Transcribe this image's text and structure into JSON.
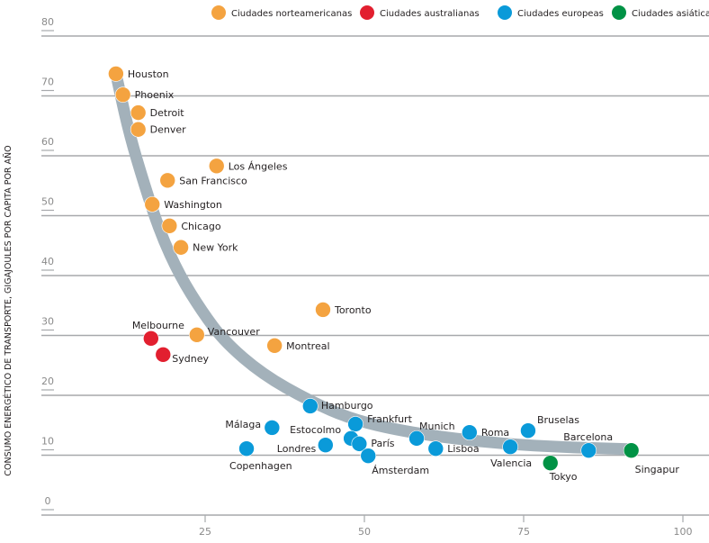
{
  "chart_data": {
    "type": "scatter",
    "title": "",
    "xlabel": "",
    "ylabel": "CONSUMO ENERGÉTICO DE TRANSPORTE, GIGAJOULES POR CAPITA POR AÑO",
    "xlim": [
      0,
      100
    ],
    "ylim": [
      0,
      80
    ],
    "xticks": [
      "25",
      "50",
      "75",
      "100"
    ],
    "yticks": [
      "0",
      "10",
      "20",
      "30",
      "40",
      "50",
      "60",
      "70",
      "80"
    ],
    "grid": "horizontal",
    "legend_position": "top",
    "series": [
      {
        "name": "Ciudades norteamericanas",
        "color": "#f4a340",
        "points": [
          {
            "label": "Houston",
            "x": 11.0,
            "y": 73.7
          },
          {
            "label": "Phoenix",
            "x": 12.1,
            "y": 70.2
          },
          {
            "label": "Detroit",
            "x": 14.5,
            "y": 67.2
          },
          {
            "label": "Denver",
            "x": 14.5,
            "y": 64.4
          },
          {
            "label": "Los Ángeles",
            "x": 26.8,
            "y": 58.3
          },
          {
            "label": "San Francisco",
            "x": 19.1,
            "y": 55.9
          },
          {
            "label": "Washington",
            "x": 16.7,
            "y": 51.9
          },
          {
            "label": "Chicago",
            "x": 19.4,
            "y": 48.3
          },
          {
            "label": "New York",
            "x": 21.2,
            "y": 44.7
          },
          {
            "label": "Toronto",
            "x": 43.5,
            "y": 34.3
          },
          {
            "label": "Vancouver",
            "x": 23.7,
            "y": 30.1
          },
          {
            "label": "Montreal",
            "x": 35.9,
            "y": 28.3
          }
        ]
      },
      {
        "name": "Ciudades australianas",
        "color": "#e21f2f",
        "points": [
          {
            "label": "Melbourne",
            "x": 16.5,
            "y": 29.5
          },
          {
            "label": "Sydney",
            "x": 18.4,
            "y": 26.8
          }
        ]
      },
      {
        "name": "Ciudades europeas",
        "color": "#0a9ad9",
        "points": [
          {
            "label": "Hamburgo",
            "x": 41.5,
            "y": 18.2
          },
          {
            "label": "Málaga",
            "x": 35.5,
            "y": 14.6
          },
          {
            "label": "Frankfurt",
            "x": 48.6,
            "y": 15.2
          },
          {
            "label": "Munich",
            "x": 58.2,
            "y": 12.8
          },
          {
            "label": "Roma",
            "x": 66.5,
            "y": 13.8
          },
          {
            "label": "Bruselas",
            "x": 75.7,
            "y": 14.1
          },
          {
            "label": "Estocolmo",
            "x": 47.9,
            "y": 12.8
          },
          {
            "label": "Londres",
            "x": 43.9,
            "y": 11.7
          },
          {
            "label": "París",
            "x": 49.2,
            "y": 11.9
          },
          {
            "label": "Lisboa",
            "x": 61.2,
            "y": 11.1
          },
          {
            "label": "Valencia",
            "x": 72.9,
            "y": 11.4
          },
          {
            "label": "Barcelona",
            "x": 85.2,
            "y": 10.8
          },
          {
            "label": "Copenhagen",
            "x": 31.5,
            "y": 11.1
          },
          {
            "label": "Ámsterdam",
            "x": 50.6,
            "y": 9.9
          }
        ]
      },
      {
        "name": "Ciudades asiáticas",
        "color": "#009245",
        "points": [
          {
            "label": "Tokyo",
            "x": 79.2,
            "y": 8.7
          },
          {
            "label": "Singapur",
            "x": 91.9,
            "y": 10.8
          }
        ]
      }
    ],
    "trend": {
      "color": "#a3b1ba",
      "points": [
        [
          11,
          73.7
        ],
        [
          13,
          64
        ],
        [
          15.5,
          55
        ],
        [
          18,
          47
        ],
        [
          21,
          40
        ],
        [
          24.5,
          34
        ],
        [
          28,
          29
        ],
        [
          34,
          23.5
        ],
        [
          41.5,
          19
        ],
        [
          48,
          16
        ],
        [
          56,
          14
        ],
        [
          66,
          12.5
        ],
        [
          77,
          11.5
        ],
        [
          92,
          11
        ]
      ]
    }
  }
}
